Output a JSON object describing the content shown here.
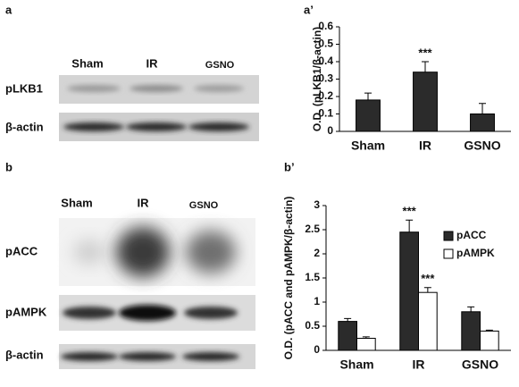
{
  "panels": {
    "a": {
      "label": "a",
      "lanes": [
        "Sham",
        "IR",
        "GSNO"
      ],
      "rows": [
        "pLKB1",
        "β-actin"
      ]
    },
    "b": {
      "label": "b",
      "lanes": [
        "Sham",
        "IR",
        "GSNO"
      ],
      "rows": [
        "pACC",
        "pAMPK",
        "β-actin"
      ]
    }
  },
  "chart_data": [
    {
      "type": "bar",
      "label": "a’",
      "y_label": "O.D. (pLKB1/β-actin)",
      "categories": [
        "Sham",
        "IR",
        "GSNO"
      ],
      "series": [
        {
          "name": "pLKB1",
          "color": "#2b2b2b",
          "values": [
            0.18,
            0.34,
            0.1
          ],
          "errors": [
            0.04,
            0.06,
            0.06
          ]
        }
      ],
      "ylim": [
        0,
        0.6
      ],
      "yticks": [
        0,
        0.1,
        0.2,
        0.3,
        0.4,
        0.5,
        0.6
      ],
      "legend": false,
      "annotations": [
        {
          "text": "***",
          "x": "IR",
          "series": "pLKB1"
        }
      ]
    },
    {
      "type": "bar",
      "label": "b’",
      "y_label": "O.D. (pACC and pAMPK/β-actin)",
      "categories": [
        "Sham",
        "IR",
        "GSNO"
      ],
      "series": [
        {
          "name": "pACC",
          "color": "#2b2b2b",
          "values": [
            0.6,
            2.45,
            0.8
          ],
          "errors": [
            0.06,
            0.25,
            0.1
          ]
        },
        {
          "name": "pAMPK",
          "color": "#ffffff",
          "values": [
            0.25,
            1.2,
            0.4
          ],
          "errors": [
            0.03,
            0.1,
            0.02
          ]
        }
      ],
      "ylim": [
        0,
        3
      ],
      "yticks": [
        0,
        0.5,
        1,
        1.5,
        2,
        2.5,
        3
      ],
      "legend": "upper right",
      "annotations": [
        {
          "text": "***",
          "x": "IR",
          "series": "pACC"
        },
        {
          "text": "***",
          "x": "IR",
          "series": "pAMPK"
        }
      ]
    }
  ]
}
